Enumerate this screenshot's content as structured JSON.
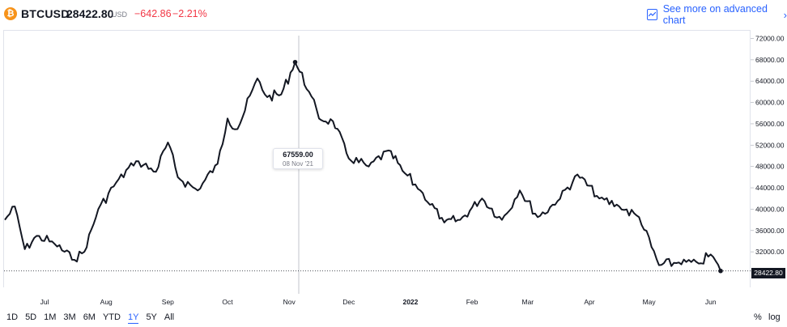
{
  "header": {
    "logo_glyph": "₿",
    "symbol": "BTCUSD",
    "price": "28422.80",
    "currency": "USD",
    "change": "−642.86",
    "change_pct": "−2.21%",
    "advanced_chart_label": "See more on advanced chart",
    "advanced_chart_icon": "chart-icon",
    "chevron": "›"
  },
  "colors": {
    "line": "#131722",
    "negative": "#f23645",
    "accent": "#2962ff",
    "btc": "#f7931a"
  },
  "tooltip": {
    "value": "67559.00",
    "date": "08 Nov '21"
  },
  "last_price_label": "28422.80",
  "range_buttons": [
    "1D",
    "5D",
    "1M",
    "3M",
    "6M",
    "YTD",
    "1Y",
    "5Y",
    "All"
  ],
  "active_range": "1Y",
  "scale_buttons": {
    "percent": "%",
    "log": "log"
  },
  "chart_data": {
    "type": "line",
    "ylim": [
      28000,
      72000
    ],
    "y_ticks": [
      "72000.00",
      "68000.00",
      "64000.00",
      "60000.00",
      "56000.00",
      "52000.00",
      "48000.00",
      "44000.00",
      "40000.00",
      "36000.00",
      "32000.00"
    ],
    "x_ticks": [
      "Jul",
      "Aug",
      "Sep",
      "Oct",
      "Nov",
      "Dec",
      "2022",
      "Feb",
      "Mar",
      "Apr",
      "May",
      "Jun"
    ],
    "x": [
      "2021-06-15",
      "2021-06-20",
      "2021-06-25",
      "2021-07-01",
      "2021-07-10",
      "2021-07-20",
      "2021-07-25",
      "2021-08-01",
      "2021-08-10",
      "2021-08-20",
      "2021-08-30",
      "2021-09-05",
      "2021-09-10",
      "2021-09-20",
      "2021-09-30",
      "2021-10-05",
      "2021-10-10",
      "2021-10-20",
      "2021-10-25",
      "2021-11-01",
      "2021-11-08",
      "2021-11-15",
      "2021-11-20",
      "2021-11-27",
      "2021-12-05",
      "2021-12-15",
      "2021-12-25",
      "2022-01-01",
      "2022-01-10",
      "2022-01-22",
      "2022-01-30",
      "2022-02-10",
      "2022-02-20",
      "2022-03-01",
      "2022-03-10",
      "2022-03-20",
      "2022-03-30",
      "2022-04-10",
      "2022-04-20",
      "2022-04-30",
      "2022-05-10",
      "2022-05-20",
      "2022-05-30",
      "2022-06-05",
      "2022-06-10"
    ],
    "values": [
      38000,
      40500,
      32500,
      35000,
      33500,
      30500,
      32000,
      40000,
      45000,
      49000,
      47000,
      52500,
      46000,
      43500,
      48500,
      57000,
      55000,
      64500,
      61000,
      61500,
      67559,
      62000,
      57000,
      56500,
      49500,
      48000,
      51000,
      47200,
      43500,
      37500,
      38000,
      42000,
      38000,
      43500,
      38500,
      41500,
      46500,
      42000,
      40500,
      38500,
      29500,
      30000,
      29800,
      31500,
      28422.8
    ],
    "last_value": 28422.8
  }
}
